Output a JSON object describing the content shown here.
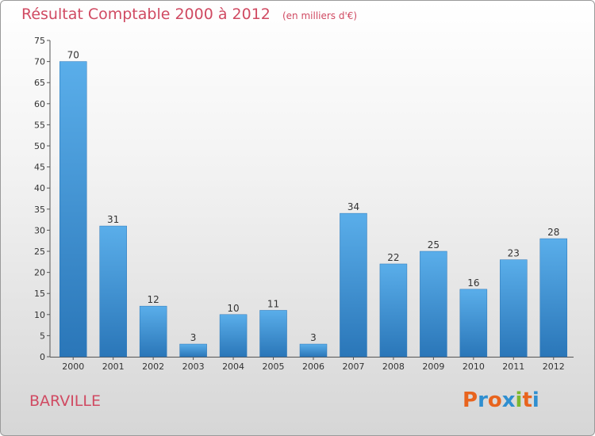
{
  "chart_data": {
    "type": "bar",
    "title": "Résultat Comptable 2000 à 2012",
    "subtitle": "(en milliers d'€)",
    "categories": [
      "2000",
      "2001",
      "2002",
      "2003",
      "2004",
      "2005",
      "2006",
      "2007",
      "2008",
      "2009",
      "2010",
      "2011",
      "2012"
    ],
    "values": [
      70,
      31,
      12,
      3,
      10,
      11,
      3,
      34,
      22,
      25,
      16,
      23,
      28
    ],
    "ylim": [
      0,
      75
    ],
    "yticks": [
      0,
      5,
      10,
      15,
      20,
      25,
      30,
      35,
      40,
      45,
      50,
      55,
      60,
      65,
      70,
      75
    ],
    "grid": false,
    "bar_color": "#3a8fd4"
  },
  "commune": "BARVILLE",
  "logo": {
    "text": "Proxiti",
    "letter_colors": [
      "#e8641e",
      "#2f8fd0",
      "#e8641e",
      "#2f8fd0",
      "#7cb82f",
      "#e8641e",
      "#2f8fd0"
    ]
  }
}
